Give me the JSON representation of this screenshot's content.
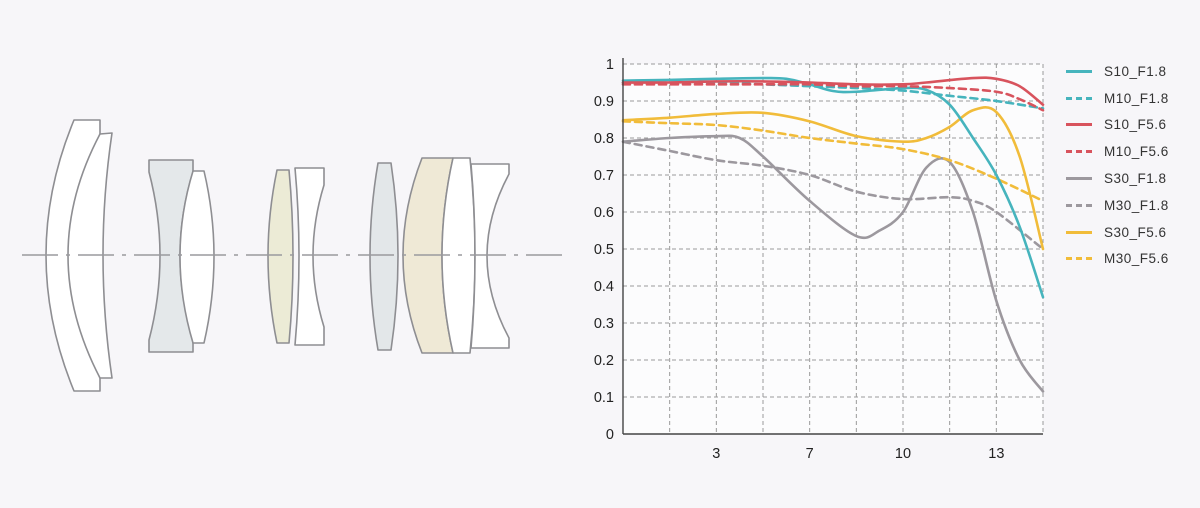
{
  "chart_data": {
    "type": "line",
    "title": "",
    "xlabel": "",
    "ylabel": "",
    "xlim": [
      0,
      9
    ],
    "ylim": [
      0,
      1
    ],
    "grid": true,
    "legend_position": "right",
    "x_ticks": [
      {
        "pos": 2,
        "label": "3"
      },
      {
        "pos": 4,
        "label": "7"
      },
      {
        "pos": 6,
        "label": "10"
      },
      {
        "pos": 8,
        "label": "13"
      }
    ],
    "y_ticks": [
      "0",
      "0.1",
      "0.2",
      "0.3",
      "0.4",
      "0.5",
      "0.6",
      "0.7",
      "0.8",
      "0.9",
      "1"
    ],
    "series": [
      {
        "name": "S10_F1.8",
        "color": "#46b4bd",
        "dashed": false,
        "x": [
          0,
          1,
          2,
          3,
          3.5,
          4,
          4.5,
          5,
          6,
          6.5,
          7,
          7.5,
          8,
          8.5,
          9
        ],
        "y": [
          0.955,
          0.957,
          0.96,
          0.962,
          0.96,
          0.945,
          0.927,
          0.925,
          0.935,
          0.93,
          0.89,
          0.8,
          0.7,
          0.56,
          0.37
        ]
      },
      {
        "name": "M10_F1.8",
        "color": "#46b4bd",
        "dashed": true,
        "x": [
          0,
          1,
          2,
          3,
          4,
          5,
          6,
          7,
          8,
          9
        ],
        "y": [
          0.95,
          0.95,
          0.95,
          0.945,
          0.94,
          0.935,
          0.928,
          0.914,
          0.9,
          0.88
        ]
      },
      {
        "name": "S10_F5.6",
        "color": "#d8535d",
        "dashed": false,
        "x": [
          0,
          1,
          2,
          3,
          4,
          5,
          6,
          6.5,
          7.5,
          8,
          8.5,
          9
        ],
        "y": [
          0.95,
          0.95,
          0.953,
          0.953,
          0.95,
          0.945,
          0.945,
          0.95,
          0.962,
          0.96,
          0.94,
          0.89
        ]
      },
      {
        "name": "M10_F5.6",
        "color": "#d8535d",
        "dashed": true,
        "x": [
          0,
          1,
          2,
          3,
          4,
          5,
          6,
          7,
          8,
          8.5,
          9
        ],
        "y": [
          0.945,
          0.945,
          0.945,
          0.945,
          0.945,
          0.94,
          0.94,
          0.935,
          0.925,
          0.905,
          0.875
        ]
      },
      {
        "name": "S30_F1.8",
        "color": "#9c989e",
        "dashed": false,
        "x": [
          0,
          1,
          2,
          2.5,
          3,
          4,
          5,
          5.5,
          6,
          6.5,
          7,
          7.5,
          8,
          8.5,
          9
        ],
        "y": [
          0.79,
          0.8,
          0.805,
          0.8,
          0.75,
          0.63,
          0.535,
          0.55,
          0.6,
          0.72,
          0.735,
          0.6,
          0.36,
          0.2,
          0.115
        ]
      },
      {
        "name": "M30_F1.8",
        "color": "#9c989e",
        "dashed": true,
        "x": [
          0,
          1,
          2,
          3,
          4,
          5,
          6,
          7,
          7.5,
          8,
          9
        ],
        "y": [
          0.79,
          0.765,
          0.74,
          0.725,
          0.7,
          0.655,
          0.635,
          0.64,
          0.63,
          0.6,
          0.5
        ]
      },
      {
        "name": "S30_F5.6",
        "color": "#f1bc3a",
        "dashed": false,
        "x": [
          0,
          1,
          2,
          3,
          4,
          5,
          6,
          6.5,
          7,
          7.5,
          8,
          8.5,
          9
        ],
        "y": [
          0.848,
          0.855,
          0.865,
          0.868,
          0.845,
          0.805,
          0.79,
          0.8,
          0.83,
          0.875,
          0.87,
          0.75,
          0.5
        ]
      },
      {
        "name": "M30_F5.6",
        "color": "#f1bc3a",
        "dashed": true,
        "x": [
          0,
          1,
          2,
          3,
          4,
          5,
          6,
          7,
          8,
          9
        ],
        "y": [
          0.845,
          0.84,
          0.835,
          0.82,
          0.8,
          0.785,
          0.77,
          0.74,
          0.69,
          0.63
        ]
      }
    ]
  }
}
